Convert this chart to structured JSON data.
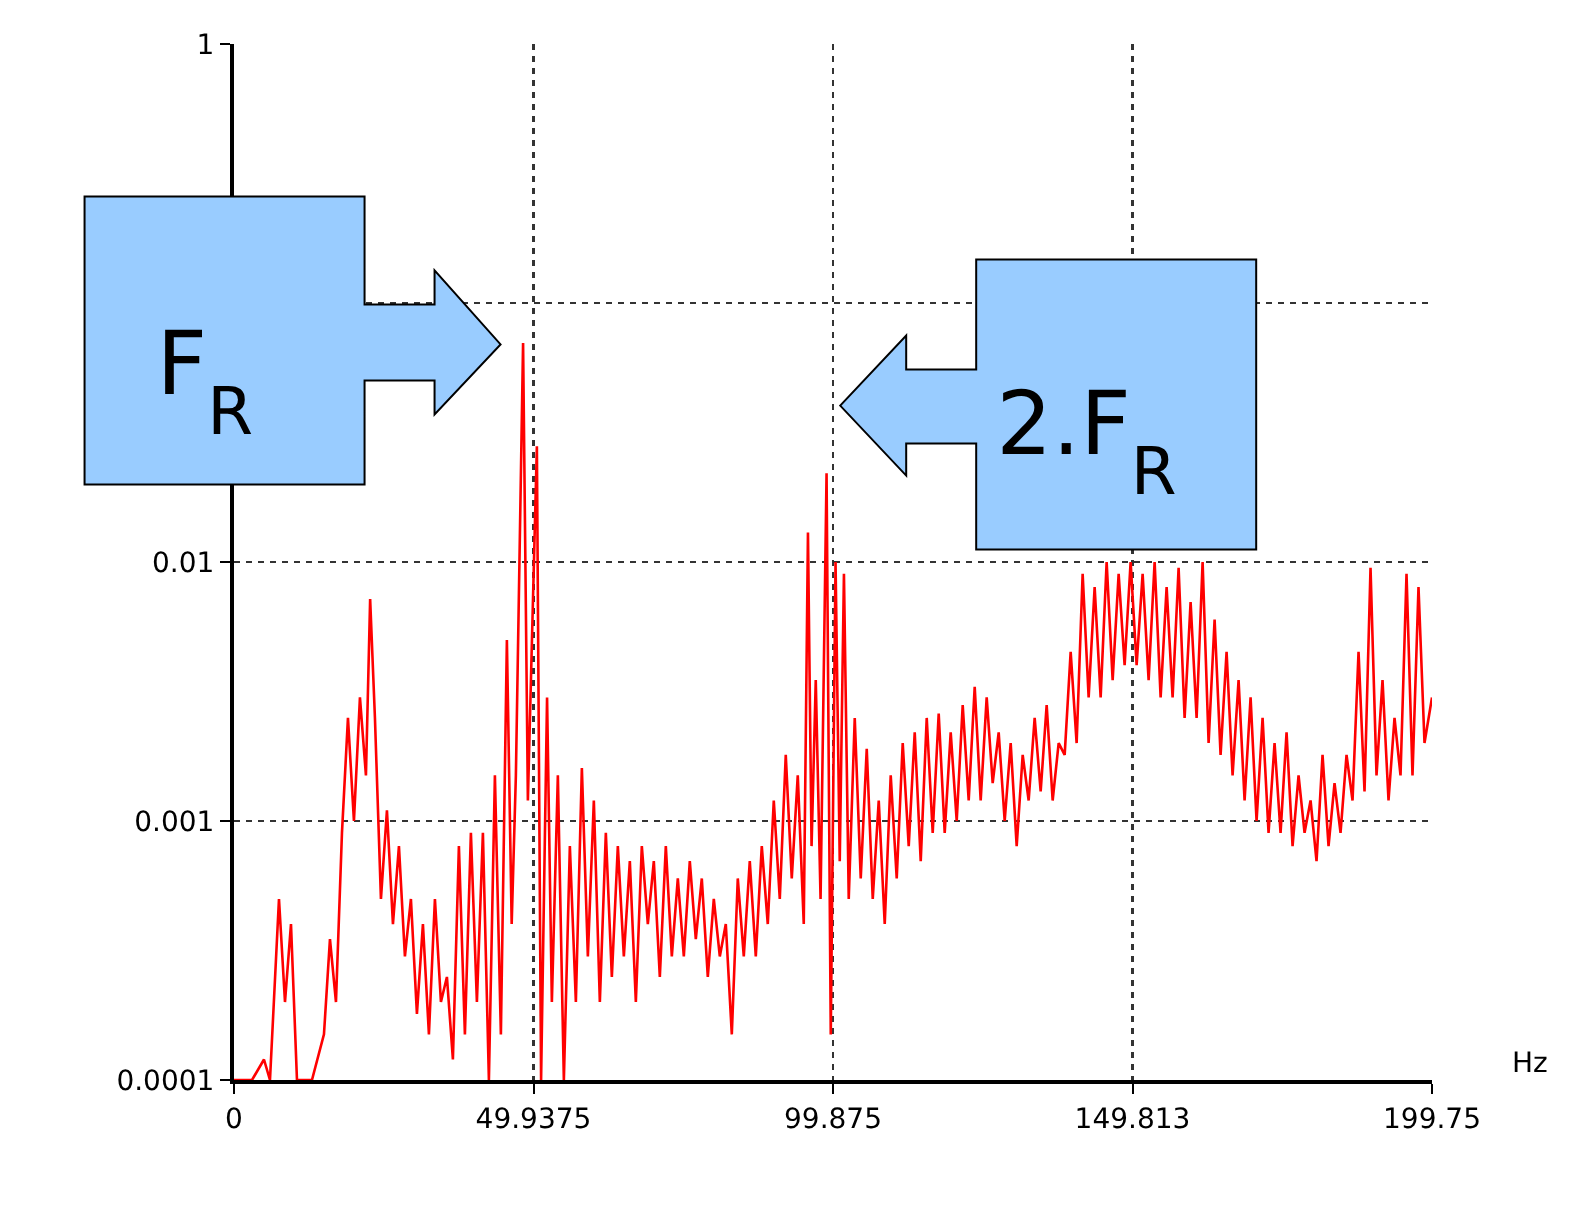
{
  "chart_data": {
    "type": "line",
    "xlabel": "Hz",
    "log": "y",
    "grid": true,
    "marker": "none",
    "line_style": "solid",
    "xlim": [
      0,
      199.75
    ],
    "xticks": [
      0,
      49.9375,
      99.875,
      149.813,
      199.75
    ],
    "ylim": [
      0.0001,
      1
    ],
    "yticks": [
      0.0001,
      0.001,
      0.01,
      {
        "value": 0.1,
        "label": null
      },
      1
    ],
    "annotations": [
      "F$_{R}$",
      "2.F$_{R}$"
    ],
    "series": [
      {
        "color": "#ff0000",
        "x": [
          0,
          3,
          5,
          6,
          7.5,
          8.5,
          9.5,
          10.5,
          13,
          15,
          16,
          17,
          18,
          19,
          20,
          21,
          22,
          22.7,
          23.5,
          24.5,
          25.5,
          26.5,
          27.5,
          28.5,
          29.5,
          30.5,
          31.5,
          32.5,
          33.5,
          34.5,
          35.5,
          36.5,
          37.5,
          38.5,
          39.5,
          40.5,
          41.5,
          42.5,
          43.5,
          44.5,
          45.5,
          46.3,
          47,
          48.2,
          49,
          50.5,
          51.2,
          52.2,
          53,
          54,
          55,
          56,
          57,
          58,
          59,
          60,
          61,
          62,
          63,
          64,
          65,
          66,
          67,
          68,
          69,
          70,
          71,
          72,
          73,
          74,
          75,
          76,
          77,
          78,
          79,
          80,
          81,
          82,
          83,
          84,
          85,
          86,
          87,
          88,
          89,
          90,
          91,
          92,
          93,
          94,
          95,
          95.7,
          96.3,
          97,
          97.8,
          98.8,
          99.5,
          100.3,
          101,
          101.7,
          102.5,
          103.5,
          104.5,
          105.5,
          106.5,
          107.5,
          108.5,
          109.5,
          110.5,
          111.5,
          112.5,
          113.5,
          114.5,
          115.5,
          116.5,
          117.5,
          118.5,
          119.5,
          120.5,
          121.5,
          122.5,
          123.5,
          124.5,
          125.5,
          126.5,
          127.5,
          128.5,
          129.5,
          130.5,
          131.5,
          132.5,
          133.5,
          134.5,
          135.5,
          136.5,
          137.5,
          138.5,
          139.5,
          140.5,
          141.5,
          142.5,
          143.5,
          144.5,
          145.5,
          146.5,
          147.5,
          148.5,
          149.5,
          150.5,
          151.5,
          152.5,
          153.5,
          154.5,
          155.5,
          156.5,
          157.5,
          158.5,
          159.5,
          160.5,
          161.5,
          162.5,
          163.5,
          164.5,
          165.5,
          166.5,
          167.5,
          168.5,
          169.5,
          170.5,
          171.5,
          172.5,
          173.5,
          174.5,
          175.5,
          176.5,
          177.5,
          178.5,
          179.5,
          180.5,
          181.5,
          182.5,
          183.5,
          184.5,
          185.5,
          186.5,
          187.5,
          188.5,
          189.5,
          190.5,
          191.5,
          192.5,
          193.5,
          194.5,
          195.5,
          196.5,
          197.5,
          198.5,
          199.75
        ],
        "values": [
          0.0001,
          0.0001,
          0.00012,
          0.0001,
          0.0005,
          0.0002,
          0.0004,
          0.0001,
          0.0001,
          0.00015,
          0.00035,
          0.0002,
          0.0009,
          0.0025,
          0.001,
          0.003,
          0.0015,
          0.0072,
          0.0025,
          0.0005,
          0.0011,
          0.0004,
          0.0008,
          0.0003,
          0.0005,
          0.00018,
          0.0004,
          0.00015,
          0.0005,
          0.0002,
          0.00025,
          0.00012,
          0.0008,
          0.00015,
          0.0009,
          0.0002,
          0.0009,
          0.0001,
          0.0015,
          0.00015,
          0.005,
          0.0004,
          0.0015,
          0.07,
          0.0012,
          0.028,
          0.0001,
          0.003,
          0.0002,
          0.0015,
          0.0001,
          0.0008,
          0.0002,
          0.0016,
          0.0003,
          0.0012,
          0.0002,
          0.0009,
          0.00025,
          0.0008,
          0.0003,
          0.0007,
          0.0002,
          0.0008,
          0.0004,
          0.0007,
          0.00025,
          0.0008,
          0.0003,
          0.0006,
          0.0003,
          0.0007,
          0.00035,
          0.0006,
          0.00025,
          0.0005,
          0.0003,
          0.0004,
          0.00015,
          0.0006,
          0.0003,
          0.0007,
          0.0003,
          0.0008,
          0.0004,
          0.0012,
          0.0005,
          0.0018,
          0.0006,
          0.0015,
          0.0004,
          0.013,
          0.0008,
          0.0035,
          0.0005,
          0.022,
          0.00015,
          0.01,
          0.0007,
          0.009,
          0.0005,
          0.0025,
          0.0006,
          0.0019,
          0.0005,
          0.0012,
          0.0004,
          0.0015,
          0.0006,
          0.002,
          0.0008,
          0.0022,
          0.0007,
          0.0025,
          0.0009,
          0.0026,
          0.0009,
          0.0022,
          0.001,
          0.0028,
          0.0012,
          0.0033,
          0.0012,
          0.003,
          0.0014,
          0.0022,
          0.001,
          0.002,
          0.0008,
          0.0018,
          0.0012,
          0.0025,
          0.0013,
          0.0028,
          0.0012,
          0.002,
          0.0018,
          0.0045,
          0.002,
          0.009,
          0.003,
          0.008,
          0.003,
          0.01,
          0.0035,
          0.009,
          0.004,
          0.01,
          0.004,
          0.009,
          0.0035,
          0.01,
          0.003,
          0.008,
          0.003,
          0.0095,
          0.0025,
          0.007,
          0.0025,
          0.01,
          0.002,
          0.006,
          0.0018,
          0.0045,
          0.0015,
          0.0035,
          0.0012,
          0.003,
          0.001,
          0.0025,
          0.0009,
          0.002,
          0.0009,
          0.0022,
          0.0008,
          0.0015,
          0.0009,
          0.0012,
          0.0007,
          0.0018,
          0.0008,
          0.0014,
          0.0009,
          0.0018,
          0.0012,
          0.0045,
          0.0013,
          0.0095,
          0.0015,
          0.0035,
          0.0012,
          0.0025,
          0.0015,
          0.009,
          0.0015,
          0.008,
          0.002,
          0.003
        ]
      }
    ]
  }
}
